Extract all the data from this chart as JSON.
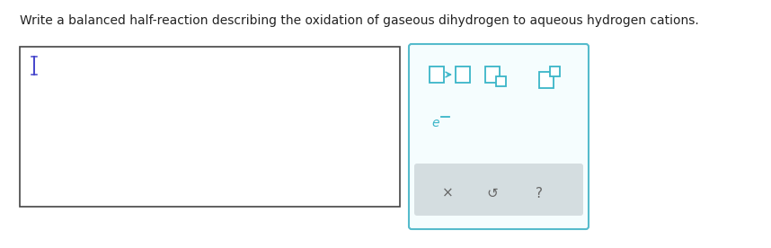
{
  "title_text": "Write a balanced half-reaction describing the oxidation of gaseous dihydrogen to aqueous hydrogen cations.",
  "title_fontsize": 10.0,
  "title_color": "#222222",
  "bg_color": "#ffffff",
  "teal": "#3ab5c8",
  "gray_text": "#666666",
  "input_box_color": "#444444",
  "cursor_color": "#4444cc",
  "toolbar_edge_color": "#55bbcc",
  "toolbar_face_color": "#f5fdfe",
  "toolbar_gray_color": "#d4dde0"
}
